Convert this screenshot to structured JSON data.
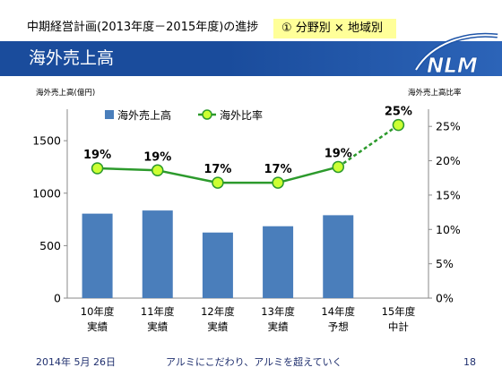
{
  "header": {
    "title": "中期経営計画(2013年度－2015年度)の進捗",
    "tag": "① 分野別 × 地域別"
  },
  "banner": {
    "title": "海外売上高",
    "logo_text": "NLM"
  },
  "colors": {
    "banner": "#1a4c9c",
    "banner_light": "#2c64b8",
    "tag_bg": "#ffff99",
    "bar": "#4a7ebb",
    "line": "#2c9a2c",
    "marker_fill": "#ccff33",
    "footer_text": "#1f2f6e"
  },
  "chart_data": {
    "type": "bar",
    "y_label_left": "海外売上高(億円)",
    "y_label_right": "海外売上高比率",
    "categories": [
      "10年度\n実績",
      "11年度\n実績",
      "12年度\n実績",
      "13年度\n実績",
      "14年度\n予想",
      "15年度\n中計"
    ],
    "ylim_left": [
      0,
      1800
    ],
    "yticks_left": [
      0,
      500,
      1000,
      1500
    ],
    "ylim_right": [
      0,
      27.5
    ],
    "yticks_right": [
      0,
      5,
      10,
      15,
      20,
      25
    ],
    "y2_unit": "%",
    "grid": false,
    "legend": "top-left",
    "series": [
      {
        "name": "海外売上高",
        "type": "bar",
        "axis": "left",
        "values": [
          805,
          835,
          625,
          685,
          790,
          null
        ]
      },
      {
        "name": "海外比率",
        "type": "line",
        "axis": "right",
        "values": [
          18.9,
          18.6,
          16.8,
          16.8,
          19.1,
          25.2
        ],
        "labels": [
          "19%",
          "19%",
          "17%",
          "17%",
          "19%",
          "25%"
        ],
        "segment_styles": [
          "solid",
          "solid",
          "solid",
          "solid",
          "dashed"
        ]
      }
    ]
  },
  "footer": {
    "date": "2014年 5月 26日",
    "slogan": "アルミにこだわり、アルミを超えていく",
    "page": "18"
  }
}
